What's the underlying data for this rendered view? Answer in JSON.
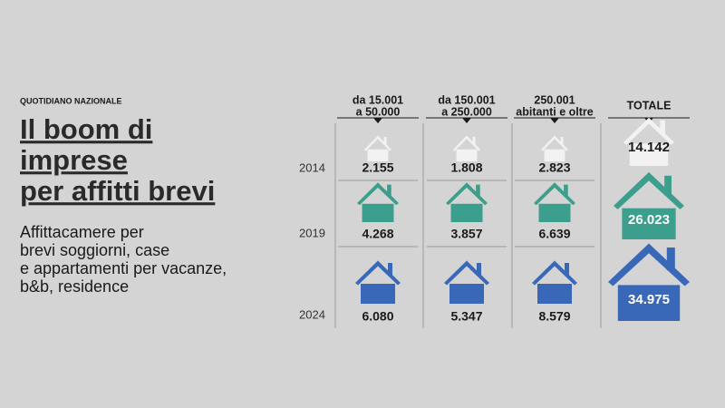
{
  "source": "QUOTIDIANO NAZIONALE",
  "title": [
    "Il boom di",
    "imprese",
    "per affitti brevi"
  ],
  "subtitle": [
    "Affittacamere per",
    "brevi soggiorni, case",
    "e appartamenti per vacanze,",
    "b&b, residence"
  ],
  "columns": [
    [
      "da 15.001",
      "a 50.000"
    ],
    [
      "da 150.001",
      "a 250.000"
    ],
    [
      "250.001",
      "abitanti e oltre"
    ],
    [
      "TOTALE"
    ]
  ],
  "rows": [
    {
      "year": "2014",
      "values": [
        "2.155",
        "1.808",
        "2.823",
        "14.142"
      ]
    },
    {
      "year": "2019",
      "values": [
        "4.268",
        "3.857",
        "6.639",
        "26.023"
      ]
    },
    {
      "year": "2024",
      "values": [
        "6.080",
        "5.347",
        "8.579",
        "34.975"
      ]
    }
  ]
}
